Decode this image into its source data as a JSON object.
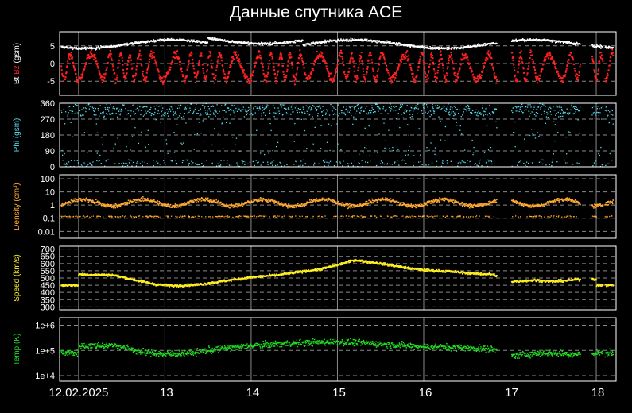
{
  "title": "Данные спутника ACE",
  "colors": {
    "background": "#000000",
    "frame": "#ffffff",
    "grid": "#8a8a8a",
    "bt": "#ffffff",
    "bz": "#ff2020",
    "phi": "#55ddee",
    "density": "#ffaa33",
    "speed": "#ffee22",
    "temp": "#22dd22"
  },
  "chart_data": [
    {
      "type": "scatter",
      "panel": "magnetic field",
      "ylabel_parts": [
        "Bt",
        "Bz",
        "(gsm)"
      ],
      "yticks": [
        5,
        0,
        -5
      ],
      "ylim": [
        -9,
        9
      ],
      "series": [
        {
          "name": "Bt",
          "approx_level": 6,
          "range": [
            4,
            9
          ]
        },
        {
          "name": "Bz",
          "approx_level": -1,
          "range": [
            -8,
            7
          ]
        }
      ]
    },
    {
      "type": "scatter",
      "panel": "phi",
      "ylabel": "Phi (gsm)",
      "yticks": [
        360,
        270,
        180,
        90,
        0
      ],
      "ylim": [
        0,
        360
      ],
      "series": [
        {
          "name": "Phi",
          "bands": [
            [
              270,
              360
            ],
            [
              0,
              40
            ]
          ]
        }
      ]
    },
    {
      "type": "scatter",
      "panel": "density",
      "ylabel": "Density (cm³)",
      "yticks": [
        "100",
        "10",
        "1",
        "0.1",
        "0.01"
      ],
      "ylim": [
        0.003,
        200
      ],
      "scale": "log",
      "series": [
        {
          "name": "Density",
          "approx_level": 1.5,
          "range": [
            0.1,
            6
          ]
        }
      ]
    },
    {
      "type": "scatter",
      "panel": "speed",
      "ylabel": "Speed (km/s)",
      "yticks": [
        700,
        650,
        600,
        550,
        500,
        450,
        400,
        350,
        300
      ],
      "ylim": [
        280,
        720
      ],
      "series": [
        {
          "name": "Speed",
          "x": [
            12.0,
            12.4,
            12.7,
            12.9,
            13.1,
            13.4,
            13.7,
            14.0,
            14.3,
            14.6,
            14.8,
            15.0,
            15.2,
            15.5,
            15.8,
            16.0,
            16.3,
            16.6,
            16.8,
            17.0,
            17.3,
            17.5,
            17.8,
            18.0,
            18.2
          ],
          "values": [
            525,
            520,
            480,
            455,
            445,
            455,
            480,
            505,
            520,
            545,
            560,
            590,
            625,
            600,
            570,
            555,
            545,
            530,
            525,
            475,
            485,
            475,
            490,
            null,
            450
          ]
        }
      ]
    },
    {
      "type": "scatter",
      "panel": "temperature",
      "ylabel": "Temp (K)",
      "yticks": [
        "1e+6",
        "1e+5",
        "1e+4"
      ],
      "ylim": [
        6000,
        2000000
      ],
      "scale": "log",
      "series": [
        {
          "name": "Temp",
          "x": [
            12.0,
            12.4,
            12.7,
            13.0,
            13.3,
            13.7,
            14.0,
            14.3,
            14.6,
            15.0,
            15.3,
            15.6,
            16.0,
            16.4,
            16.8,
            17.0,
            17.4,
            17.8,
            18.0,
            18.2
          ],
          "values": [
            150000,
            160000,
            90000,
            70000,
            80000,
            120000,
            150000,
            180000,
            200000,
            220000,
            200000,
            170000,
            140000,
            130000,
            110000,
            60000,
            80000,
            70000,
            null,
            80000
          ]
        }
      ]
    }
  ],
  "x_axis": {
    "labels": [
      "12.02.2025",
      "13",
      "14",
      "15",
      "16",
      "17",
      "18"
    ],
    "range_days": [
      11.78,
      18.23
    ]
  }
}
